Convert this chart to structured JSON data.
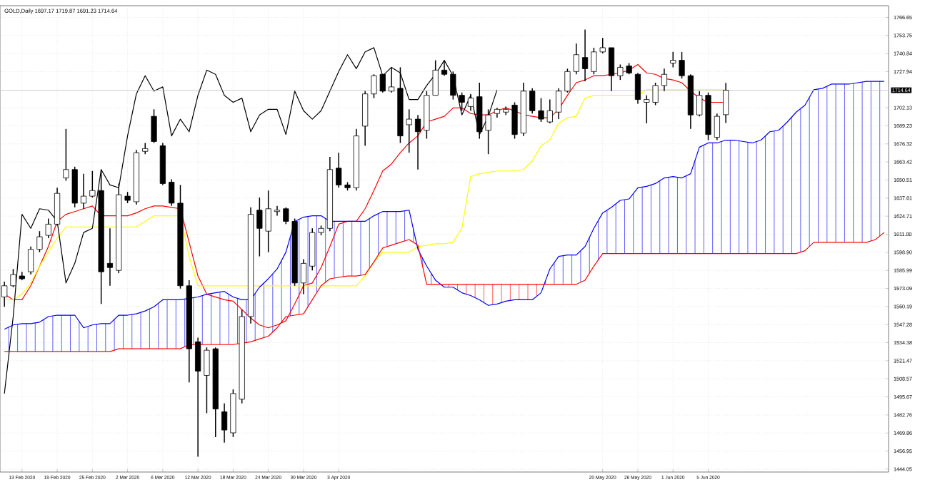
{
  "chart_data": {
    "type": "candlestick",
    "title": "GOLD,Daily  1697.17 1719.87 1691.23 1714.64",
    "categories": [
      null,
      null,
      "13 Feb 2020",
      null,
      null,
      null,
      "19 Feb 2020",
      null,
      null,
      null,
      "25 Feb 2020",
      null,
      null,
      null,
      "2 Mar 2020",
      null,
      null,
      null,
      "6 Mar 2020",
      null,
      null,
      null,
      "12 Mar 2020",
      null,
      null,
      null,
      "18 Mar 2020",
      null,
      null,
      null,
      "24 Mar 2020",
      null,
      null,
      null,
      "30 Mar 2020",
      null,
      null,
      null,
      "3 Apr 2020",
      null,
      null,
      null,
      null,
      null,
      null,
      null,
      null,
      null,
      null,
      null,
      null,
      null,
      null,
      null,
      null,
      null,
      null,
      null,
      null,
      null,
      null,
      null,
      null,
      null,
      null,
      null,
      null,
      null,
      "20 May 2020",
      null,
      null,
      null,
      "26 May 2020",
      null,
      null,
      null,
      "1 Jun 2020",
      null,
      null,
      null,
      "5 Jun 2020",
      null,
      null,
      null,
      null,
      null,
      null,
      null,
      null,
      null,
      null,
      null,
      null,
      null,
      null,
      null,
      null,
      null,
      null,
      null,
      null
    ],
    "ohlc": [
      [
        1567,
        1578,
        1560,
        1575
      ],
      [
        1575,
        1587,
        1574,
        1583
      ],
      [
        1582,
        1585,
        1579,
        1580
      ],
      [
        1585,
        1603,
        1583,
        1601
      ],
      [
        1601,
        1614,
        1599,
        1610
      ],
      [
        1611,
        1623,
        1609,
        1619
      ],
      [
        1619,
        1645,
        1618,
        1641
      ],
      [
        1652,
        1687,
        1650,
        1658
      ],
      [
        1658,
        1660,
        1631,
        1634
      ],
      [
        1634,
        1655,
        1630,
        1639
      ],
      [
        1639,
        1657,
        1638,
        1643
      ],
      [
        1643,
        1658,
        1562,
        1585
      ],
      [
        1591,
        1616,
        1575,
        1588
      ],
      [
        1586,
        1648,
        1584,
        1640
      ],
      [
        1639,
        1642,
        1634,
        1636
      ],
      [
        1635,
        1672,
        1633,
        1670
      ],
      [
        1671,
        1677,
        1669,
        1673
      ],
      [
        1696,
        1701,
        1677,
        1678
      ],
      [
        1675,
        1677,
        1647,
        1648
      ],
      [
        1649,
        1651,
        1632,
        1634
      ],
      [
        1634,
        1647,
        1573,
        1575
      ],
      [
        1575,
        1579,
        1506,
        1530
      ],
      [
        1535,
        1538,
        1453,
        1514
      ],
      [
        1511,
        1531,
        1484,
        1529
      ],
      [
        1530,
        1531,
        1467,
        1487
      ],
      [
        1485,
        1491,
        1463,
        1472
      ],
      [
        1470,
        1501,
        1467,
        1498
      ],
      [
        1494,
        1558,
        1491,
        1553
      ],
      [
        1553,
        1631,
        1548,
        1626
      ],
      [
        1629,
        1638,
        1596,
        1616
      ],
      [
        1614,
        1643,
        1599,
        1630
      ],
      [
        1628,
        1632,
        1625,
        1629
      ],
      [
        1630,
        1631,
        1619,
        1621
      ],
      [
        1621,
        1623,
        1575,
        1577
      ],
      [
        1577,
        1594,
        1569,
        1591
      ],
      [
        1589,
        1616,
        1586,
        1613
      ],
      [
        1613,
        1618,
        1611,
        1616
      ],
      [
        1616,
        1667,
        1614,
        1658
      ],
      [
        1659,
        1670,
        1645,
        1647
      ],
      [
        1647,
        1649,
        1643,
        1645
      ],
      [
        1645,
        1687,
        1643,
        1682
      ],
      [
        1689,
        1714,
        1675,
        1712
      ],
      [
        1712,
        1726,
        1709,
        1725
      ],
      [
        1726,
        1726,
        1713,
        1714
      ],
      [
        1714,
        1731,
        1713,
        1717
      ],
      [
        1716,
        1731,
        1677,
        1682
      ],
      [
        1690,
        1701,
        1670,
        1694
      ],
      [
        1694,
        1697,
        1658,
        1685
      ],
      [
        1686,
        1714,
        1680,
        1711
      ],
      [
        1711,
        1736,
        1711,
        1729
      ],
      [
        1729,
        1736,
        1725,
        1726
      ],
      [
        1726,
        1728,
        1708,
        1711
      ],
      [
        1711,
        1713,
        1700,
        1706
      ],
      [
        1703,
        1712,
        1700,
        1709
      ],
      [
        1710,
        1720,
        1680,
        1685
      ],
      [
        1686,
        1701,
        1669,
        1697
      ],
      [
        1698,
        1702,
        1695,
        1701
      ],
      [
        1699,
        1703,
        1697,
        1701
      ],
      [
        1704,
        1706,
        1680,
        1683
      ],
      [
        1684,
        1720,
        1682,
        1714
      ],
      [
        1714,
        1716,
        1698,
        1700
      ],
      [
        1700,
        1709,
        1692,
        1694
      ],
      [
        1692,
        1708,
        1691,
        1700
      ],
      [
        1699,
        1716,
        1694,
        1714
      ],
      [
        1714,
        1730,
        1713,
        1728
      ],
      [
        1728,
        1748,
        1726,
        1740
      ],
      [
        1738,
        1758,
        1721,
        1730
      ],
      [
        1728,
        1745,
        1726,
        1742
      ],
      [
        1742,
        1752,
        1741,
        1745
      ],
      [
        1745,
        1745,
        1714,
        1725
      ],
      [
        1725,
        1733,
        1722,
        1731
      ],
      [
        1732,
        1734,
        1726,
        1727
      ],
      [
        1726,
        1727,
        1705,
        1708
      ],
      [
        1706,
        1711,
        1691,
        1708
      ],
      [
        1706,
        1720,
        1704,
        1718
      ],
      [
        1718,
        1730,
        1714,
        1726
      ],
      [
        1734,
        1742,
        1731,
        1736
      ],
      [
        1736,
        1742,
        1723,
        1725
      ],
      [
        1725,
        1726,
        1687,
        1697
      ],
      [
        1697,
        1714,
        1696,
        1711
      ],
      [
        1711,
        1713,
        1679,
        1683
      ],
      [
        1681,
        1698,
        1679,
        1696
      ],
      [
        1697.17,
        1719.87,
        1691.23,
        1714.64
      ],
      null,
      null,
      null,
      null,
      null,
      null,
      null,
      null,
      null,
      null,
      null,
      null,
      null,
      null,
      null,
      null,
      null,
      null
    ],
    "series": [
      {
        "type": "line",
        "color": "#ff0000",
        "values": [
          1569,
          1565,
          1565,
          1575,
          1589,
          1603,
          1621,
          1626,
          1628,
          1630,
          1632,
          1625,
          1625,
          1625,
          1625,
          1627,
          1630,
          1632,
          1632,
          1631,
          1630,
          1606,
          1582,
          1569,
          1567,
          1565,
          1564,
          1558,
          1552,
          1547,
          1545,
          1547,
          1550,
          1562,
          1575,
          1577,
          1588,
          1603,
          1619,
          1621,
          1621,
          1630,
          1643,
          1657,
          1662,
          1670,
          1677,
          1682,
          1692,
          1694,
          1696,
          1702,
          1702,
          1698,
          1697,
          1697,
          1700,
          1702,
          1700,
          1697,
          1696,
          1695,
          1695,
          1701,
          1711,
          1720,
          1722,
          1725,
          1725,
          1726,
          1727,
          1729,
          1733,
          1727,
          1726,
          1723,
          1722,
          1720,
          1714,
          1709,
          1706,
          1706,
          1706,
          null,
          null,
          null,
          null,
          null,
          null,
          null,
          null,
          null,
          null,
          null,
          null,
          null,
          null,
          null,
          null,
          null,
          null
        ]
      },
      {
        "type": "line",
        "color": "#ffff00",
        "values": [
          1565,
          1565,
          1569,
          1577,
          1589,
          1599,
          1609,
          1617,
          1617,
          1617,
          1617,
          1617,
          1617,
          1617,
          1617,
          1617,
          1621,
          1625,
          1625,
          1625,
          1625,
          1596,
          1575,
          1575,
          1575,
          1575,
          1575,
          1575,
          1575,
          1575,
          1575,
          1575,
          1575,
          1575,
          1575,
          1575,
          1575,
          1575,
          1575,
          1575,
          1575,
          1582,
          1592,
          1599,
          1599,
          1599,
          1599,
          1603,
          1604,
          1605,
          1605,
          1606,
          1616,
          1653,
          1655,
          1656,
          1657,
          1657,
          1657,
          1658,
          1664,
          1675,
          1679,
          1691,
          1695,
          1696,
          1709,
          1711,
          1711,
          1711,
          1711,
          1711,
          1711,
          1715,
          1715,
          1715,
          1715,
          1715,
          1715,
          1715,
          1715,
          1715,
          1715,
          null,
          null,
          null,
          null,
          null,
          null,
          null,
          null,
          null,
          null,
          null,
          null,
          null,
          null,
          null,
          null,
          null,
          null
        ]
      },
      {
        "type": "line",
        "color": "#000000",
        "values": [
          1498,
          1553,
          1626,
          1616,
          1630,
          1629,
          1621,
          1577,
          1591,
          1613,
          1616,
          1658,
          1647,
          1645,
          1682,
          1712,
          1725,
          1714,
          1717,
          1682,
          1694,
          1685,
          1711,
          1729,
          1726,
          1711,
          1706,
          1709,
          1685,
          1697,
          1701,
          1701,
          1683,
          1714,
          1700,
          1694,
          1700,
          1714,
          1728,
          1740,
          1730,
          1742,
          1745,
          1725,
          1731,
          1727,
          1708,
          1708,
          1718,
          1726,
          1736,
          1725,
          1697,
          1711,
          1683,
          1696,
          1715,
          null,
          null,
          null,
          null,
          null,
          null,
          null,
          null,
          null,
          null,
          null,
          null,
          null,
          null,
          null,
          null,
          null,
          null,
          null,
          null,
          null,
          null,
          null,
          null,
          null,
          null,
          null,
          null,
          null,
          null,
          null,
          null,
          null,
          null,
          null,
          null,
          null,
          null,
          null,
          null,
          null,
          null,
          null,
          null
        ]
      },
      {
        "type": "line",
        "color": "#0000ff",
        "values": [
          1544,
          1547,
          1548,
          1548,
          1549,
          1553,
          1554,
          1554,
          1554,
          1545,
          1547,
          1548,
          1548,
          1554,
          1554,
          1555,
          1557,
          1560,
          1565,
          1565,
          1565,
          1566,
          1567,
          1569,
          1570,
          1571,
          1567,
          1565,
          1565,
          1574,
          1580,
          1587,
          1599,
          1621,
          1624,
          1625,
          1625,
          1621,
          1621,
          1621,
          1621,
          1621,
          1625,
          1628,
          1628,
          1628,
          1629,
          1601,
          1589,
          1579,
          1574,
          1574,
          1570,
          1568,
          1565,
          1561,
          1562,
          1564,
          1565,
          1565,
          1565,
          1570,
          1587,
          1596,
          1597,
          1597,
          1603,
          1616,
          1627,
          1631,
          1636,
          1637,
          1645,
          1646,
          1648,
          1652,
          1653,
          1652,
          1655,
          1674,
          1677,
          1677,
          1679,
          1679,
          1678,
          1677,
          1679,
          1685,
          1686,
          1692,
          1699,
          1704,
          1715,
          1716,
          1719,
          1719,
          1719,
          1720,
          1721,
          1721,
          1721
        ]
      },
      {
        "type": "line",
        "color": "#ff0000",
        "values": [
          1528,
          1528,
          1528,
          1528,
          1528,
          1528,
          1528,
          1528,
          1528,
          1528,
          1528,
          1528,
          1528,
          1530,
          1530,
          1530,
          1530,
          1530,
          1530,
          1530,
          1530,
          1533,
          1533,
          1533,
          1533,
          1533,
          1533,
          1534,
          1535,
          1537,
          1539,
          1545,
          1553,
          1554,
          1555,
          1565,
          1575,
          1580,
          1581,
          1582,
          1582,
          1583,
          1592,
          1602,
          1604,
          1606,
          1608,
          1604,
          1576,
          1576,
          1576,
          1576,
          1576,
          1576,
          1576,
          1576,
          1576,
          1576,
          1576,
          1576,
          1576,
          1576,
          1576,
          1576,
          1576,
          1576,
          1579,
          1589,
          1598,
          1598,
          1598,
          1598,
          1598,
          1598,
          1598,
          1598,
          1598,
          1598,
          1598,
          1598,
          1598,
          1598,
          1598,
          1598,
          1598,
          1598,
          1598,
          1598,
          1598,
          1598,
          1598,
          1600,
          1606,
          1606,
          1606,
          1606,
          1606,
          1606,
          1606,
          1608,
          1613
        ]
      }
    ],
    "ylim": [
      1442,
      1775
    ],
    "yticks": [
      1444.05,
      1456.95,
      1469.86,
      1482.76,
      1495.67,
      1508.57,
      1521.47,
      1534.38,
      1547.28,
      1560.19,
      1573.09,
      1585.99,
      {
        "value": 1598.9,
        "label": "1598.90"
      },
      {
        "value": 1611.8,
        "label": "1611.80"
      },
      1624.71,
      1637.61,
      1650.51,
      1663.42,
      1676.32,
      1689.23,
      1702.13,
      1727.94,
      1740.84,
      1753.75,
      1766.65
    ],
    "ref_lines": [
      {
        "axis": "y",
        "value": 1714.64,
        "label": "1714.64",
        "color": "#c0c0c0"
      }
    ],
    "grid": true
  }
}
